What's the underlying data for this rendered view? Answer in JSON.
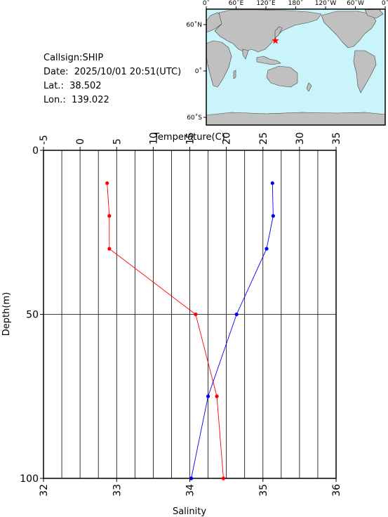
{
  "info": {
    "callsign": "Callsign:SHIP",
    "date": "Date:  2025/10/01 20:51(UTC)",
    "lat": "Lat.:  38.502",
    "lon": "Lon.:  139.022"
  },
  "map": {
    "lon_ticks": [
      "0˚",
      "60˚E",
      "120˚E",
      "180˚",
      "120˚W",
      "60˚W",
      "0˚"
    ],
    "lat_ticks": [
      "60˚N",
      "0˚",
      "60˚S"
    ],
    "ocean_color": "#c8f4fa",
    "land_color": "#c0c0c0",
    "marker_color": "#ff0000",
    "marker_icon": "star-icon",
    "station": {
      "lat": 38.502,
      "lon": 139.022
    }
  },
  "chart_data": {
    "type": "line",
    "top_axis": {
      "label": "Temperature(C)",
      "range": [
        -5,
        35
      ],
      "ticks": [
        "-5",
        "0",
        "5",
        "10",
        "15",
        "20",
        "25",
        "30",
        "35"
      ]
    },
    "bottom_axis": {
      "label": "Salinity",
      "range": [
        32,
        36
      ],
      "ticks": [
        "32",
        "33",
        "34",
        "35",
        "36"
      ]
    },
    "y_axis": {
      "label": "Depth(m)",
      "range": [
        0,
        100
      ],
      "inverted": true,
      "ticks": [
        "0",
        "50",
        "100"
      ]
    },
    "grid": true,
    "series": [
      {
        "axis": "top",
        "color": "#ff0000",
        "points": [
          {
            "x": 3.7,
            "depth": 10
          },
          {
            "x": 4.0,
            "depth": 20
          },
          {
            "x": 4.0,
            "depth": 30
          },
          {
            "x": 15.8,
            "depth": 50
          },
          {
            "x": 18.7,
            "depth": 75
          },
          {
            "x": 19.6,
            "depth": 100
          }
        ]
      },
      {
        "axis": "bottom",
        "color": "#0000ff",
        "points": [
          {
            "x": 35.13,
            "depth": 10
          },
          {
            "x": 35.14,
            "depth": 20
          },
          {
            "x": 35.05,
            "depth": 30
          },
          {
            "x": 34.64,
            "depth": 50
          },
          {
            "x": 34.25,
            "depth": 75
          },
          {
            "x": 34.02,
            "depth": 100
          }
        ]
      }
    ]
  }
}
